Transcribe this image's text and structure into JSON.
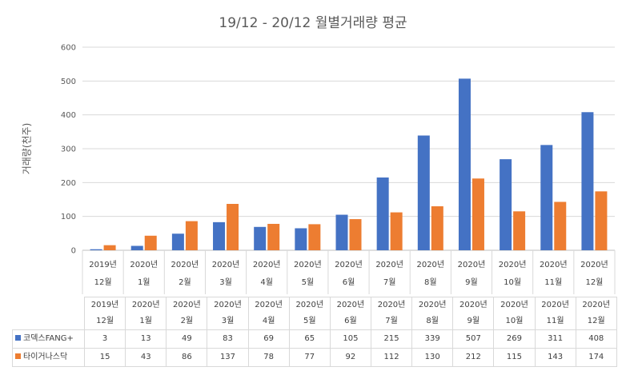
{
  "chart_data": {
    "type": "bar",
    "title": "19/12 - 20/12 월별거래량 평균",
    "ylabel": "거래량(천주)",
    "xlabel": "",
    "ylim": [
      0,
      600
    ],
    "yticks": [
      0,
      100,
      200,
      300,
      400,
      500,
      600
    ],
    "grid": true,
    "legend": "data table",
    "categories": [
      [
        "2019년",
        "12월"
      ],
      [
        "2020년",
        "1월"
      ],
      [
        "2020년",
        "2월"
      ],
      [
        "2020년",
        "3월"
      ],
      [
        "2020년",
        "4월"
      ],
      [
        "2020년",
        "5월"
      ],
      [
        "2020년",
        "6월"
      ],
      [
        "2020년",
        "7월"
      ],
      [
        "2020년",
        "8월"
      ],
      [
        "2020년",
        "9월"
      ],
      [
        "2020년",
        "10월"
      ],
      [
        "2020년",
        "11월"
      ],
      [
        "2020년",
        "12월"
      ]
    ],
    "series": [
      {
        "name": "코덱스FANG+",
        "color": "#4472C4",
        "values": [
          3,
          13,
          49,
          83,
          69,
          65,
          105,
          215,
          339,
          507,
          269,
          311,
          408
        ]
      },
      {
        "name": "타이거나스닥",
        "color": "#ED7D31",
        "values": [
          15,
          43,
          86,
          137,
          78,
          77,
          92,
          112,
          130,
          212,
          115,
          143,
          174
        ]
      }
    ]
  }
}
